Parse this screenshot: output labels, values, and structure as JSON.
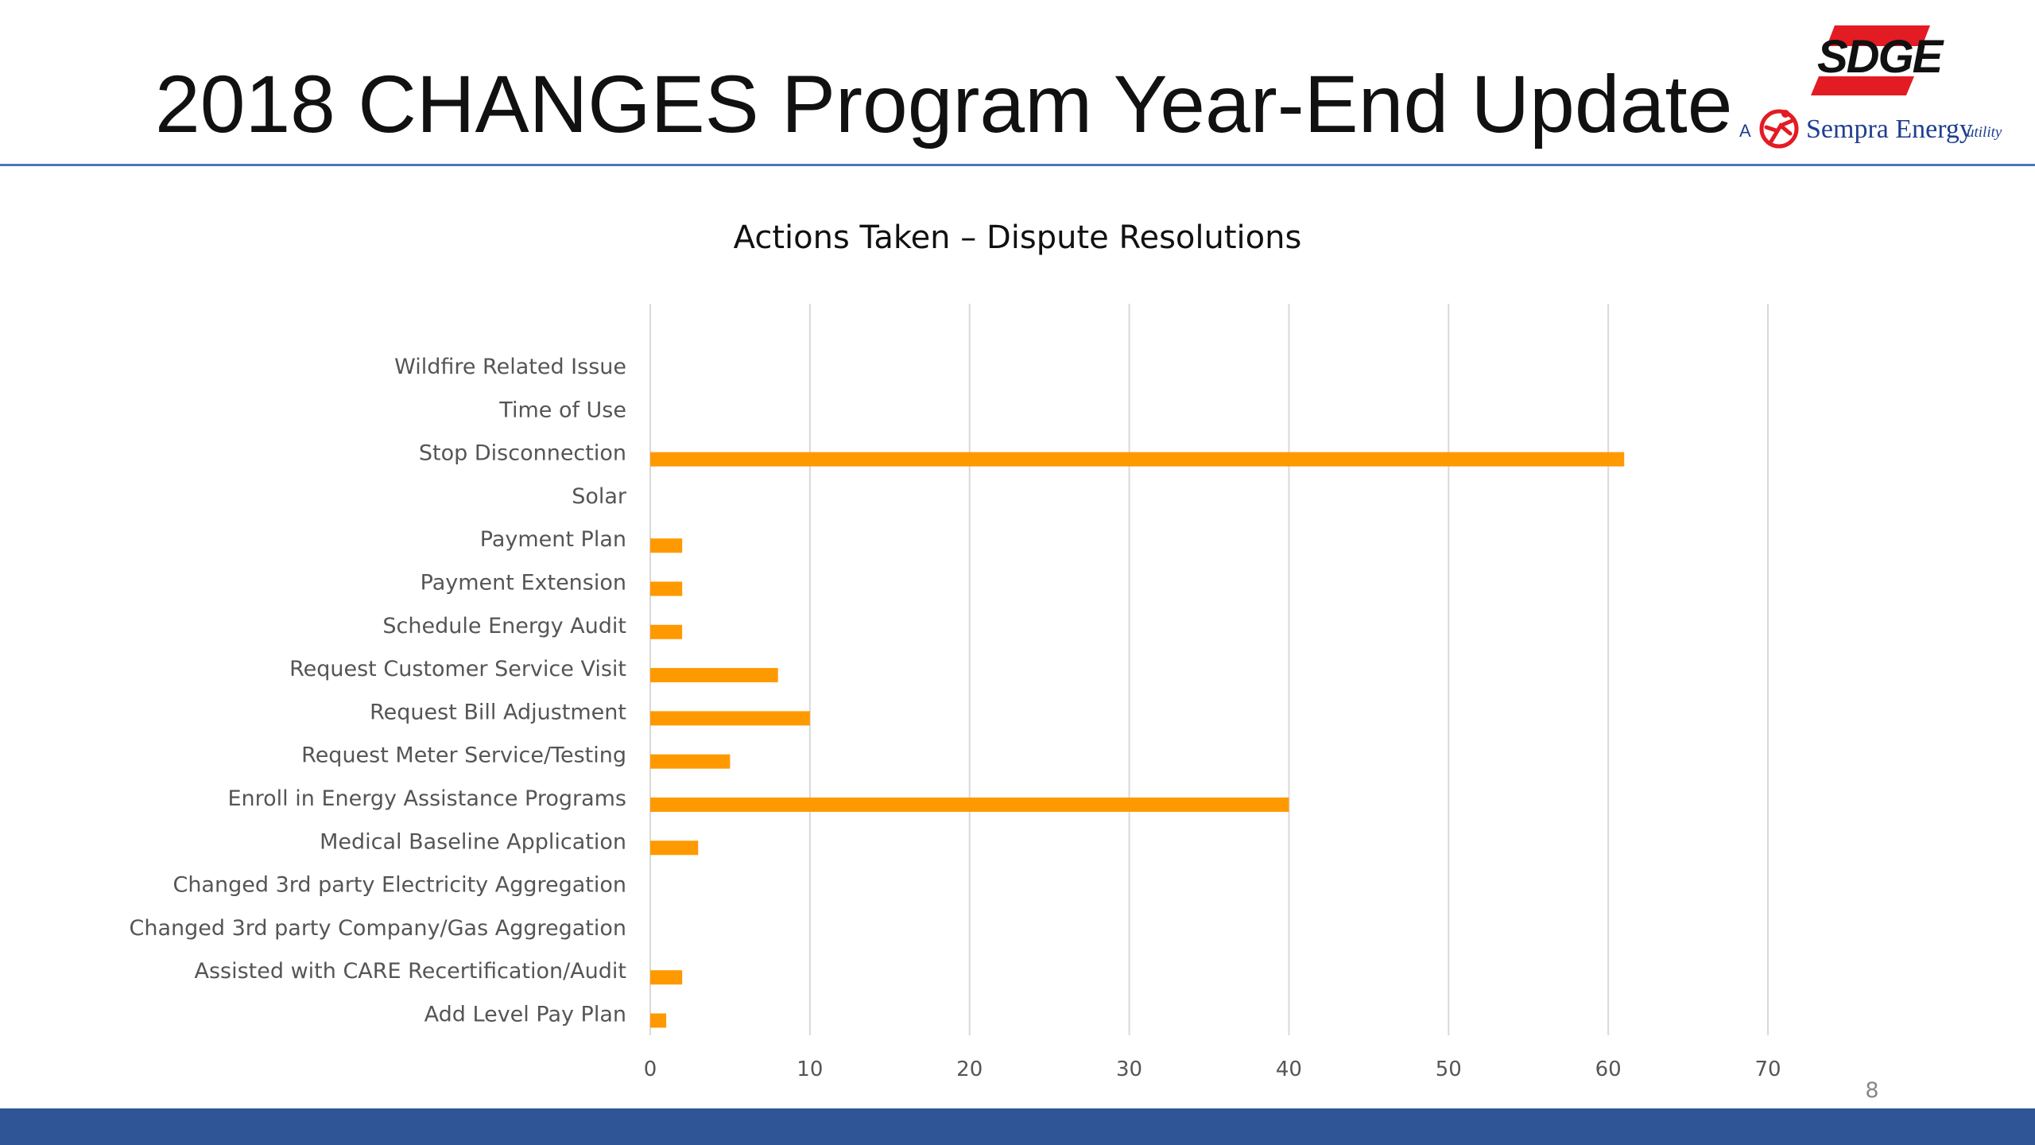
{
  "slide": {
    "title": "2018 CHANGES Program Year-End Update",
    "page_number": "8",
    "footer_color": "#2f5597",
    "rule_color": "#4a78b5"
  },
  "logo": {
    "brand": "SDGE",
    "prefix": "A",
    "company": "Sempra Energy",
    "suffix": "utility",
    "trademark": "®",
    "brand_color": "#e31b23",
    "text_color": "#1f3f8f"
  },
  "chart_data": {
    "type": "bar",
    "orientation": "horizontal",
    "title": "Actions Taken – Dispute Resolutions",
    "categories": [
      "Wildfire Related Issue",
      "Time of Use",
      "Stop Disconnection",
      "Solar",
      "Payment Plan",
      "Payment Extension",
      "Schedule Energy Audit",
      "Request Customer Service Visit",
      "Request Bill Adjustment",
      "Request Meter Service/Testing",
      "Enroll in Energy Assistance Programs",
      "Medical Baseline Application",
      "Changed 3rd party Electricity Aggregation",
      "Changed 3rd party Company/Gas Aggregation",
      "Assisted with CARE Recertification/Audit",
      "Add Level Pay Plan"
    ],
    "values": [
      0,
      0,
      61,
      0,
      2,
      2,
      2,
      8,
      10,
      5,
      40,
      3,
      0,
      0,
      2,
      1
    ],
    "xlim": [
      0,
      70
    ],
    "xticks": [
      0,
      10,
      20,
      30,
      40,
      50,
      60,
      70
    ],
    "grid": "vertical",
    "legend": "none",
    "bar_color": "#ff9900"
  }
}
